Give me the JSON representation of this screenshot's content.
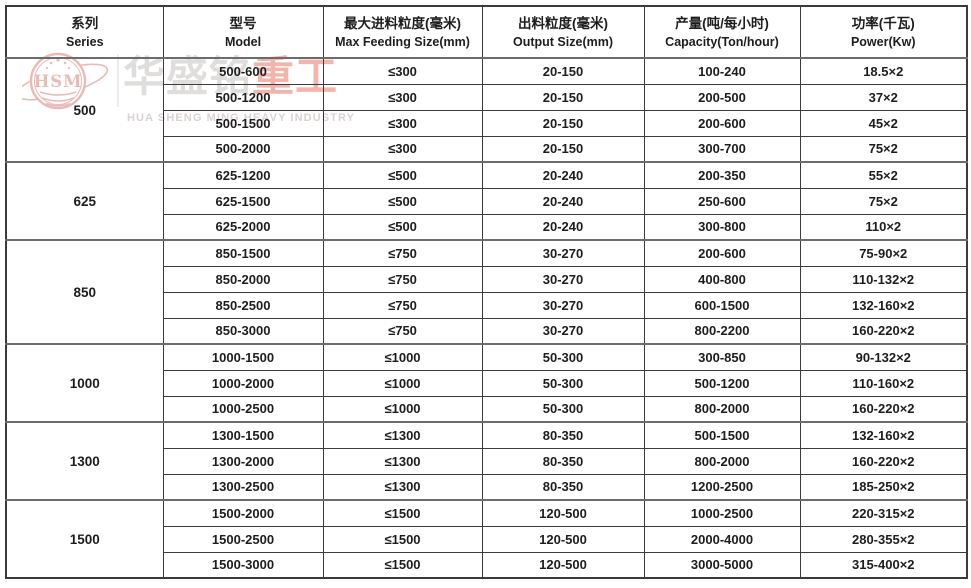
{
  "chart_data": {
    "type": "table",
    "columns": [
      {
        "zh": "系列",
        "en": "Series"
      },
      {
        "zh": "型号",
        "en": "Model"
      },
      {
        "zh": "最大进料粒度(毫米)",
        "en": "Max Feeding Size(mm)"
      },
      {
        "zh": "出料粒度(毫米)",
        "en": "Output Size(mm)"
      },
      {
        "zh": "产量(吨/每小时)",
        "en": "Capacity(Ton/hour)"
      },
      {
        "zh": "功率(千瓦)",
        "en": "Power(Kw)"
      }
    ],
    "groups": [
      {
        "series": "500",
        "rows": [
          [
            "500-600",
            "≤300",
            "20-150",
            "100-240",
            "18.5×2"
          ],
          [
            "500-1200",
            "≤300",
            "20-150",
            "200-500",
            "37×2"
          ],
          [
            "500-1500",
            "≤300",
            "20-150",
            "200-600",
            "45×2"
          ],
          [
            "500-2000",
            "≤300",
            "20-150",
            "300-700",
            "75×2"
          ]
        ]
      },
      {
        "series": "625",
        "rows": [
          [
            "625-1200",
            "≤500",
            "20-240",
            "200-350",
            "55×2"
          ],
          [
            "625-1500",
            "≤500",
            "20-240",
            "250-600",
            "75×2"
          ],
          [
            "625-2000",
            "≤500",
            "20-240",
            "300-800",
            "110×2"
          ]
        ]
      },
      {
        "series": "850",
        "rows": [
          [
            "850-1500",
            "≤750",
            "30-270",
            "200-600",
            "75-90×2"
          ],
          [
            "850-2000",
            "≤750",
            "30-270",
            "400-800",
            "110-132×2"
          ],
          [
            "850-2500",
            "≤750",
            "30-270",
            "600-1500",
            "132-160×2"
          ],
          [
            "850-3000",
            "≤750",
            "30-270",
            "800-2200",
            "160-220×2"
          ]
        ]
      },
      {
        "series": "1000",
        "rows": [
          [
            "1000-1500",
            "≤1000",
            "50-300",
            "300-850",
            "90-132×2"
          ],
          [
            "1000-2000",
            "≤1000",
            "50-300",
            "500-1200",
            "110-160×2"
          ],
          [
            "1000-2500",
            "≤1000",
            "50-300",
            "800-2000",
            "160-220×2"
          ]
        ]
      },
      {
        "series": "1300",
        "rows": [
          [
            "1300-1500",
            "≤1300",
            "80-350",
            "500-1500",
            "132-160×2"
          ],
          [
            "1300-2000",
            "≤1300",
            "80-350",
            "800-2000",
            "160-220×2"
          ],
          [
            "1300-2500",
            "≤1300",
            "80-350",
            "1200-2500",
            "185-250×2"
          ]
        ]
      },
      {
        "series": "1500",
        "rows": [
          [
            "1500-2000",
            "≤1500",
            "120-500",
            "1000-2500",
            "220-315×2"
          ],
          [
            "1500-2500",
            "≤1500",
            "120-500",
            "2000-4000",
            "280-355×2"
          ],
          [
            "1500-3000",
            "≤1500",
            "120-500",
            "3000-5000",
            "315-400×2"
          ]
        ]
      }
    ]
  },
  "watermark": {
    "logo_text": "HSM",
    "brand_zh_gray": "华盛铭",
    "brand_zh_red": "重工",
    "brand_en": "HUA SHENG MING HEAVY INDUSTRY",
    "colors": {
      "logo_salmon": "#d9847b",
      "zh_gray": "#e0dedd",
      "zh_red": "#f2b5ad",
      "en_gray": "#d9d3d1"
    }
  }
}
